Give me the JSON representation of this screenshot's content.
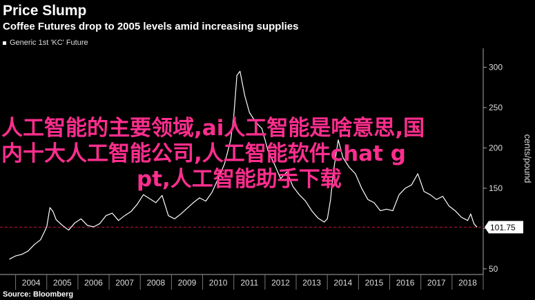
{
  "header": {
    "title": "Price Slump",
    "subtitle": "Coffee Futures drop to 2005 levels amid increasing supplies"
  },
  "source": "Source: Bloomberg",
  "overlay_text": {
    "line1": "人工智能的主要领域,ai人工智能是啥意思,国",
    "line2": "内十大人工智能公司,人工智能软件chat g",
    "line3": "pt,人工智能助手下载"
  },
  "colors": {
    "background": "#000000",
    "line": "#ffffff",
    "reference": "#c0163f",
    "overlay": "#ff2e8e"
  },
  "chart_data": {
    "type": "line",
    "series": [
      {
        "name": "Generic 1st 'KC' Future",
        "x": [
          2003.8,
          2004.0,
          2004.2,
          2004.4,
          2004.6,
          2004.8,
          2005.0,
          2005.1,
          2005.2,
          2005.3,
          2005.5,
          2005.7,
          2005.9,
          2006.1,
          2006.3,
          2006.5,
          2006.7,
          2006.9,
          2007.1,
          2007.3,
          2007.5,
          2007.7,
          2007.9,
          2008.1,
          2008.3,
          2008.5,
          2008.7,
          2008.9,
          2009.1,
          2009.3,
          2009.5,
          2009.7,
          2009.9,
          2010.1,
          2010.3,
          2010.5,
          2010.7,
          2010.9,
          2011.0,
          2011.1,
          2011.2,
          2011.35,
          2011.5,
          2011.7,
          2011.9,
          2012.1,
          2012.3,
          2012.5,
          2012.7,
          2012.9,
          2013.1,
          2013.3,
          2013.5,
          2013.7,
          2013.9,
          2014.0,
          2014.1,
          2014.2,
          2014.35,
          2014.5,
          2014.7,
          2014.9,
          2015.1,
          2015.3,
          2015.5,
          2015.7,
          2015.9,
          2016.1,
          2016.3,
          2016.5,
          2016.7,
          2016.9,
          2017.1,
          2017.3,
          2017.5,
          2017.7,
          2017.9,
          2018.1,
          2018.3,
          2018.5,
          2018.6,
          2018.7,
          2018.8
        ],
        "y": [
          62,
          66,
          68,
          72,
          80,
          86,
          102,
          126,
          121,
          111,
          104,
          98,
          107,
          112,
          104,
          102,
          106,
          116,
          119,
          110,
          116,
          121,
          130,
          142,
          137,
          132,
          141,
          116,
          112,
          118,
          125,
          132,
          138,
          134,
          145,
          162,
          180,
          210,
          240,
          290,
          295,
          265,
          244,
          232,
          224,
          196,
          180,
          162,
          170,
          152,
          142,
          134,
          122,
          113,
          108,
          112,
          135,
          172,
          210,
          188,
          176,
          168,
          150,
          136,
          132,
          122,
          124,
          122,
          142,
          150,
          154,
          168,
          146,
          142,
          136,
          140,
          128,
          122,
          114,
          110,
          118,
          106,
          101.75
        ]
      }
    ],
    "yaxis": {
      "label": "cents/pound",
      "ticks": [
        50,
        100,
        150,
        200,
        250,
        300
      ],
      "range": [
        43,
        315
      ],
      "side": "right"
    },
    "xaxis": {
      "ticks": [
        "2004",
        "2005",
        "2006",
        "2007",
        "2008",
        "2009",
        "2010",
        "2011",
        "2012",
        "2013",
        "2014",
        "2015",
        "2016",
        "2017",
        "2018"
      ],
      "range": [
        2003.5,
        2019.0
      ]
    },
    "reference_line": {
      "value": 101.75,
      "style": "dashed"
    },
    "last_value_label": "101.75",
    "legend": {
      "position": "top-left"
    },
    "grid": false
  }
}
